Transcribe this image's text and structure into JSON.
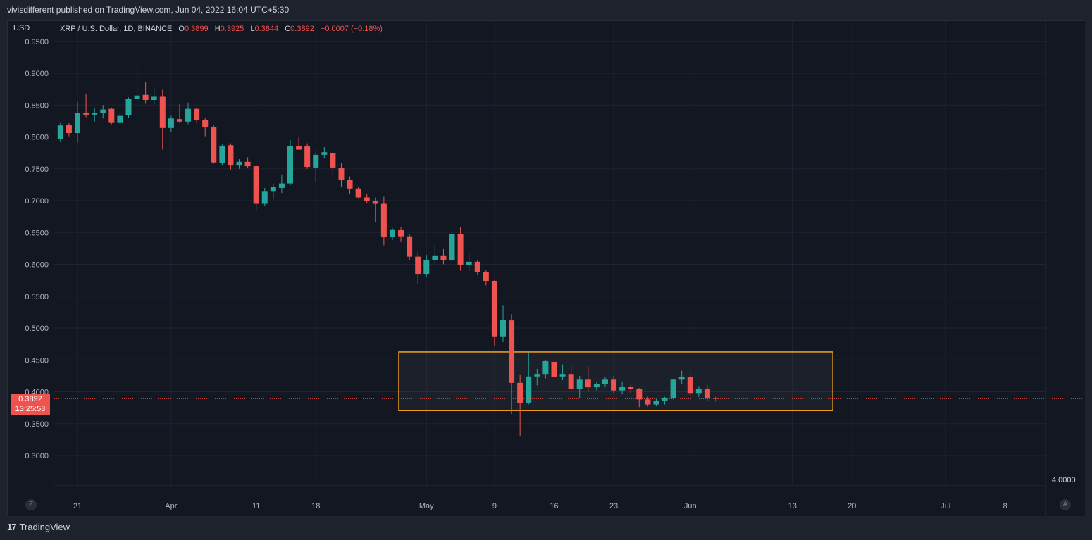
{
  "header": {
    "publisher_line": "vivisdifferent published on TradingView.com, Jun 04, 2022 16:04 UTC+5:30"
  },
  "chart_data": {
    "type": "candlestick",
    "currency": "USD",
    "symbol_line": "XRP / U.S. Dollar, 1D, BINANCE",
    "ohlc": {
      "o_label": "O",
      "o": "0.3899",
      "h_label": "H",
      "h": "0.3925",
      "l_label": "L",
      "l": "0.3844",
      "c_label": "C",
      "c": "0.3892",
      "change": "−0.0007 (−0.18%)"
    },
    "last_price": "0.3892",
    "countdown": "13:25:53",
    "ylim": [
      0.26,
      0.97
    ],
    "y_ticks": [
      "0.9500",
      "0.9000",
      "0.8500",
      "0.8000",
      "0.7500",
      "0.7000",
      "0.6500",
      "0.6000",
      "0.5500",
      "0.5000",
      "0.4500",
      "0.4000",
      "0.3500",
      "0.3000"
    ],
    "x_ticks": [
      "21",
      "Apr",
      "11",
      "18",
      "May",
      "9",
      "16",
      "23",
      "Jun",
      "13",
      "20",
      "Jul",
      "8"
    ],
    "secondary_value": "4.0000",
    "candles": [
      {
        "date": "2022-03-19",
        "o": 0.797,
        "h": 0.823,
        "l": 0.792,
        "c": 0.818
      },
      {
        "date": "2022-03-20",
        "o": 0.819,
        "h": 0.822,
        "l": 0.801,
        "c": 0.806
      },
      {
        "date": "2022-03-21",
        "o": 0.806,
        "h": 0.855,
        "l": 0.791,
        "c": 0.837
      },
      {
        "date": "2022-03-22",
        "o": 0.837,
        "h": 0.868,
        "l": 0.831,
        "c": 0.835
      },
      {
        "date": "2022-03-23",
        "o": 0.835,
        "h": 0.845,
        "l": 0.824,
        "c": 0.838
      },
      {
        "date": "2022-03-24",
        "o": 0.838,
        "h": 0.85,
        "l": 0.829,
        "c": 0.843
      },
      {
        "date": "2022-03-25",
        "o": 0.844,
        "h": 0.846,
        "l": 0.82,
        "c": 0.823
      },
      {
        "date": "2022-03-26",
        "o": 0.823,
        "h": 0.838,
        "l": 0.821,
        "c": 0.833
      },
      {
        "date": "2022-03-27",
        "o": 0.834,
        "h": 0.862,
        "l": 0.83,
        "c": 0.86
      },
      {
        "date": "2022-03-28",
        "o": 0.86,
        "h": 0.914,
        "l": 0.848,
        "c": 0.865
      },
      {
        "date": "2022-03-29",
        "o": 0.866,
        "h": 0.886,
        "l": 0.852,
        "c": 0.858
      },
      {
        "date": "2022-03-30",
        "o": 0.858,
        "h": 0.875,
        "l": 0.851,
        "c": 0.863
      },
      {
        "date": "2022-03-31",
        "o": 0.863,
        "h": 0.874,
        "l": 0.78,
        "c": 0.814
      },
      {
        "date": "2022-04-01",
        "o": 0.814,
        "h": 0.833,
        "l": 0.808,
        "c": 0.829
      },
      {
        "date": "2022-04-02",
        "o": 0.828,
        "h": 0.851,
        "l": 0.823,
        "c": 0.824
      },
      {
        "date": "2022-04-03",
        "o": 0.824,
        "h": 0.854,
        "l": 0.82,
        "c": 0.844
      },
      {
        "date": "2022-04-04",
        "o": 0.844,
        "h": 0.846,
        "l": 0.823,
        "c": 0.827
      },
      {
        "date": "2022-04-05",
        "o": 0.827,
        "h": 0.83,
        "l": 0.801,
        "c": 0.816
      },
      {
        "date": "2022-04-06",
        "o": 0.816,
        "h": 0.818,
        "l": 0.758,
        "c": 0.76
      },
      {
        "date": "2022-04-07",
        "o": 0.759,
        "h": 0.788,
        "l": 0.755,
        "c": 0.786
      },
      {
        "date": "2022-04-08",
        "o": 0.787,
        "h": 0.79,
        "l": 0.749,
        "c": 0.755
      },
      {
        "date": "2022-04-09",
        "o": 0.755,
        "h": 0.765,
        "l": 0.75,
        "c": 0.761
      },
      {
        "date": "2022-04-10",
        "o": 0.761,
        "h": 0.768,
        "l": 0.751,
        "c": 0.754
      },
      {
        "date": "2022-04-11",
        "o": 0.754,
        "h": 0.756,
        "l": 0.685,
        "c": 0.695
      },
      {
        "date": "2022-04-12",
        "o": 0.695,
        "h": 0.72,
        "l": 0.692,
        "c": 0.714
      },
      {
        "date": "2022-04-13",
        "o": 0.714,
        "h": 0.727,
        "l": 0.702,
        "c": 0.721
      },
      {
        "date": "2022-04-14",
        "o": 0.72,
        "h": 0.741,
        "l": 0.712,
        "c": 0.727
      },
      {
        "date": "2022-04-15",
        "o": 0.727,
        "h": 0.795,
        "l": 0.724,
        "c": 0.786
      },
      {
        "date": "2022-04-16",
        "o": 0.786,
        "h": 0.8,
        "l": 0.781,
        "c": 0.78
      },
      {
        "date": "2022-04-17",
        "o": 0.785,
        "h": 0.79,
        "l": 0.75,
        "c": 0.753
      },
      {
        "date": "2022-04-18",
        "o": 0.752,
        "h": 0.778,
        "l": 0.73,
        "c": 0.772
      },
      {
        "date": "2022-04-19",
        "o": 0.772,
        "h": 0.784,
        "l": 0.766,
        "c": 0.776
      },
      {
        "date": "2022-04-20",
        "o": 0.775,
        "h": 0.778,
        "l": 0.741,
        "c": 0.752
      },
      {
        "date": "2022-04-21",
        "o": 0.751,
        "h": 0.759,
        "l": 0.722,
        "c": 0.733
      },
      {
        "date": "2022-04-22",
        "o": 0.733,
        "h": 0.738,
        "l": 0.711,
        "c": 0.719
      },
      {
        "date": "2022-04-23",
        "o": 0.719,
        "h": 0.722,
        "l": 0.704,
        "c": 0.705
      },
      {
        "date": "2022-04-24",
        "o": 0.705,
        "h": 0.711,
        "l": 0.696,
        "c": 0.7
      },
      {
        "date": "2022-04-25",
        "o": 0.7,
        "h": 0.705,
        "l": 0.666,
        "c": 0.695
      },
      {
        "date": "2022-04-26",
        "o": 0.695,
        "h": 0.706,
        "l": 0.63,
        "c": 0.643
      },
      {
        "date": "2022-04-27",
        "o": 0.643,
        "h": 0.657,
        "l": 0.638,
        "c": 0.655
      },
      {
        "date": "2022-04-28",
        "o": 0.654,
        "h": 0.659,
        "l": 0.635,
        "c": 0.644
      },
      {
        "date": "2022-04-29",
        "o": 0.644,
        "h": 0.647,
        "l": 0.607,
        "c": 0.612
      },
      {
        "date": "2022-04-30",
        "o": 0.612,
        "h": 0.62,
        "l": 0.569,
        "c": 0.585
      },
      {
        "date": "2022-05-01",
        "o": 0.585,
        "h": 0.615,
        "l": 0.58,
        "c": 0.607
      },
      {
        "date": "2022-05-02",
        "o": 0.607,
        "h": 0.63,
        "l": 0.6,
        "c": 0.614
      },
      {
        "date": "2022-05-03",
        "o": 0.614,
        "h": 0.625,
        "l": 0.6,
        "c": 0.607
      },
      {
        "date": "2022-05-04",
        "o": 0.606,
        "h": 0.651,
        "l": 0.603,
        "c": 0.648
      },
      {
        "date": "2022-05-05",
        "o": 0.648,
        "h": 0.658,
        "l": 0.59,
        "c": 0.599
      },
      {
        "date": "2022-05-06",
        "o": 0.599,
        "h": 0.616,
        "l": 0.59,
        "c": 0.604
      },
      {
        "date": "2022-05-07",
        "o": 0.604,
        "h": 0.607,
        "l": 0.584,
        "c": 0.588
      },
      {
        "date": "2022-05-08",
        "o": 0.588,
        "h": 0.591,
        "l": 0.567,
        "c": 0.574
      },
      {
        "date": "2022-05-09",
        "o": 0.574,
        "h": 0.576,
        "l": 0.472,
        "c": 0.487
      },
      {
        "date": "2022-05-10",
        "o": 0.487,
        "h": 0.536,
        "l": 0.478,
        "c": 0.513
      },
      {
        "date": "2022-05-11",
        "o": 0.512,
        "h": 0.522,
        "l": 0.365,
        "c": 0.414
      },
      {
        "date": "2022-05-12",
        "o": 0.414,
        "h": 0.426,
        "l": 0.331,
        "c": 0.382
      },
      {
        "date": "2022-05-13",
        "o": 0.383,
        "h": 0.462,
        "l": 0.38,
        "c": 0.424
      },
      {
        "date": "2022-05-14",
        "o": 0.424,
        "h": 0.436,
        "l": 0.41,
        "c": 0.428
      },
      {
        "date": "2022-05-15",
        "o": 0.428,
        "h": 0.45,
        "l": 0.421,
        "c": 0.448
      },
      {
        "date": "2022-05-16",
        "o": 0.447,
        "h": 0.449,
        "l": 0.415,
        "c": 0.423
      },
      {
        "date": "2022-05-17",
        "o": 0.424,
        "h": 0.443,
        "l": 0.418,
        "c": 0.428
      },
      {
        "date": "2022-05-18",
        "o": 0.428,
        "h": 0.442,
        "l": 0.4,
        "c": 0.404
      },
      {
        "date": "2022-05-19",
        "o": 0.404,
        "h": 0.425,
        "l": 0.39,
        "c": 0.419
      },
      {
        "date": "2022-05-20",
        "o": 0.419,
        "h": 0.44,
        "l": 0.4,
        "c": 0.407
      },
      {
        "date": "2022-05-21",
        "o": 0.407,
        "h": 0.416,
        "l": 0.402,
        "c": 0.412
      },
      {
        "date": "2022-05-22",
        "o": 0.412,
        "h": 0.423,
        "l": 0.408,
        "c": 0.419
      },
      {
        "date": "2022-05-23",
        "o": 0.419,
        "h": 0.425,
        "l": 0.398,
        "c": 0.402
      },
      {
        "date": "2022-05-24",
        "o": 0.402,
        "h": 0.415,
        "l": 0.396,
        "c": 0.408
      },
      {
        "date": "2022-05-25",
        "o": 0.408,
        "h": 0.411,
        "l": 0.398,
        "c": 0.404
      },
      {
        "date": "2022-05-26",
        "o": 0.404,
        "h": 0.406,
        "l": 0.376,
        "c": 0.388
      },
      {
        "date": "2022-05-27",
        "o": 0.388,
        "h": 0.392,
        "l": 0.377,
        "c": 0.38
      },
      {
        "date": "2022-05-28",
        "o": 0.38,
        "h": 0.389,
        "l": 0.378,
        "c": 0.386
      },
      {
        "date": "2022-05-29",
        "o": 0.386,
        "h": 0.392,
        "l": 0.38,
        "c": 0.39
      },
      {
        "date": "2022-05-30",
        "o": 0.39,
        "h": 0.42,
        "l": 0.388,
        "c": 0.419
      },
      {
        "date": "2022-05-31",
        "o": 0.419,
        "h": 0.433,
        "l": 0.412,
        "c": 0.423
      },
      {
        "date": "2022-06-01",
        "o": 0.423,
        "h": 0.427,
        "l": 0.395,
        "c": 0.398
      },
      {
        "date": "2022-06-02",
        "o": 0.398,
        "h": 0.409,
        "l": 0.392,
        "c": 0.405
      },
      {
        "date": "2022-06-03",
        "o": 0.405,
        "h": 0.41,
        "l": 0.386,
        "c": 0.39
      },
      {
        "date": "2022-06-04",
        "o": 0.3899,
        "h": 0.3925,
        "l": 0.3844,
        "c": 0.3892
      }
    ],
    "highlight_box": {
      "from": "2022-04-28",
      "to": "2022-06-18",
      "top": 0.4625,
      "bottom": 0.3705
    },
    "colors": {
      "up": "#26a69a",
      "down": "#ef5350",
      "box": "#f7a21b",
      "grid": "#1f2430",
      "bg": "#131722"
    }
  },
  "corner_buttons": {
    "left": "Z",
    "right": "A"
  },
  "footer": {
    "brand": "TradingView",
    "mark": "17"
  }
}
